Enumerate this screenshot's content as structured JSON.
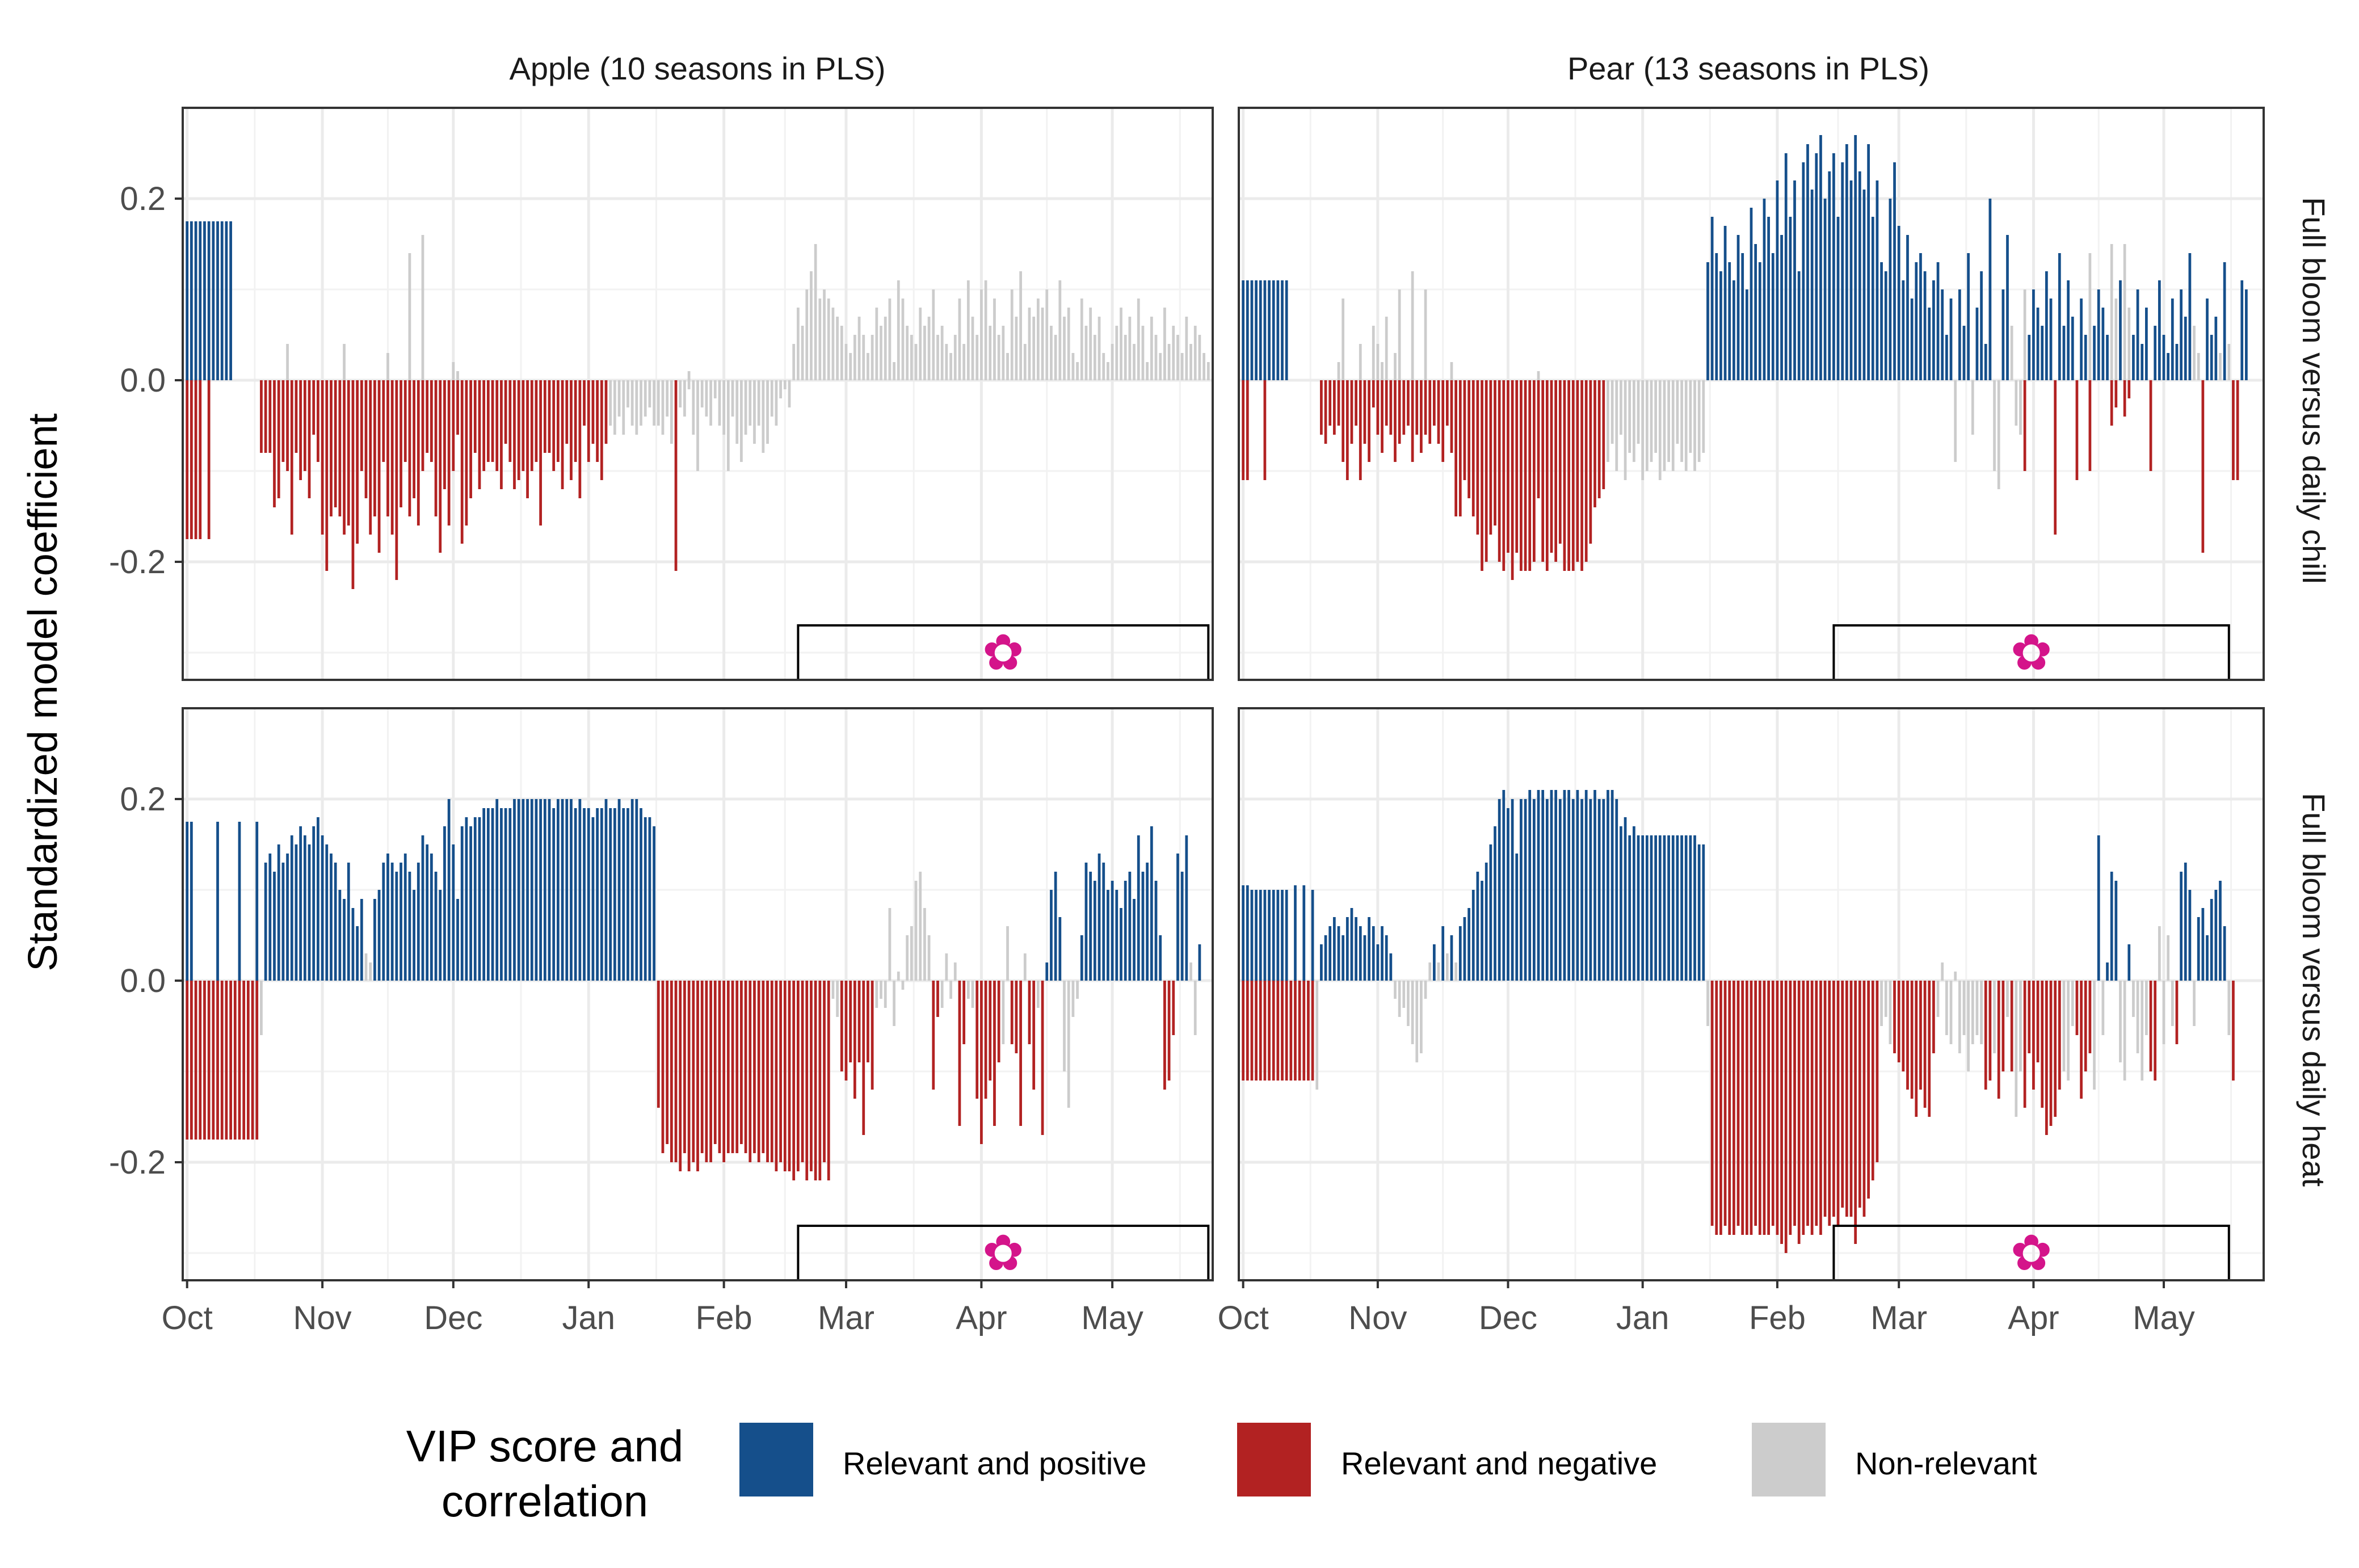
{
  "chart_data": {
    "type": "bar",
    "ylabel": "Standardized model coefficient",
    "ylim": [
      -0.33,
      0.3
    ],
    "yticks": [
      "0.2",
      "0.0",
      "-0.2"
    ],
    "ytick_values": [
      0.2,
      0.0,
      -0.2
    ],
    "xticks": [
      "Oct",
      "Nov",
      "Dec",
      "Jan",
      "Feb",
      "Mar",
      "Apr",
      "May"
    ],
    "xtick_days": [
      0,
      31,
      61,
      92,
      123,
      151,
      182,
      212
    ],
    "xlim": [
      -1,
      235
    ],
    "grid": true,
    "colors": {
      "positive": "#154f8b",
      "negative": "#b22222",
      "nonrelevant": "#cccccc",
      "flower": "#d4148a"
    },
    "legend": {
      "title_line1": "VIP score and",
      "title_line2": "correlation",
      "entries": [
        {
          "key": "positive",
          "label": "Relevant and positive"
        },
        {
          "key": "negative",
          "label": "Relevant and negative"
        },
        {
          "key": "nonrelevant",
          "label": "Non-relevant"
        }
      ],
      "placement": "bottom"
    },
    "columns": [
      {
        "id": "apple",
        "title": "Apple (10 seasons in PLS)",
        "bloom_window": [
          140,
          234
        ]
      },
      {
        "id": "pear",
        "title": "Pear (13 seasons in PLS)",
        "bloom_window": [
          136,
          227
        ]
      }
    ],
    "rows": [
      {
        "id": "chill",
        "title": "Full bloom versus daily chill"
      },
      {
        "id": "heat",
        "title": "Full bloom versus daily heat"
      }
    ],
    "flower_symbol": "✿",
    "panels": {
      "apple_chill": "0-3:0.175P/-0.175N;4-4:0.175P;5-5:0.175P/-0.175N;6-10:0.175P;11-16:0;17-19:-0.08N;20-20:-0.14N;21-21:-0.13N;22-22:-0.09N;23-23:0.04C/-0.1N;24-24:-0.17N;25-25:-0.08N;26-26:-0.11N;27-27:-0.1N;28-28:-0.13N;29-29:-0.06N;30-30:-0.09N;31-31:-0.17N;32-32:-0.21N;33-33:-0.15N;34-34:-0.14N;35-35:-0.15N;36-36:0.04C/-0.17N;37-37:-0.16N;38-38:-0.23N;39-39:-0.18N;40-40:-0.1N;41-41:-0.13N;42-42:-0.17N;43-43:-0.15N;44-44:-0.19N;45-45:-0.09N;46-46:0.03C/-0.15N;47-47:-0.17N;48-48:-0.22N;49-49:-0.14N;50-50:-0.09N;51-51:0.14C/-0.15N;52-52:-0.13N;53-53:-0.16N;54-54:0.16C/-0.1N;55-55:-0.08N;56-56:-0.09N;57-57:-0.15N;58-58:-0.19N;59-59:-0.12N;60-60:-0.16N;61-61:0.02C/-0.1N;62-62:0.01C/-0.06N;63-63:-0.18N;64-64:-0.16N;65-65:-0.13N;66-66:-0.08N;67-67:-0.12N;68-68:-0.1N;69-69:-0.09N;70-70:-0.09N;71-71:-0.1N;72-72:-0.12N;73-73:-0.07N;74-74:-0.09N;75-75:-0.12N;76-76:-0.11N;77-77:-0.1N;78-78:-0.13N;79-79:-0.1N;80-80:-0.09N;81-81:-0.16N;82-82:-0.08N;83-83:-0.08N;84-84:-0.1N;85-85:-0.09N;86-86:-0.12N;87-87:-0.07N;88-88:-0.11N;89-89:-0.09N;90-90:-0.13N;91-91:-0.05N;92-92:-0.09N;93-93:-0.07N;94-94:-0.09N;95-95:-0.11N;96-96:-0.07N;97-97:-0.05C;98-98:-0.06C;99-99:-0.04C;100-100:-0.06C;101-101:-0.03C;102-102:-0.05C;103-103:-0.06C;104-104:-0.05C;105-105:-0.04C;106-106:-0.03C;107-107:-0.05C;108-108:-0.05C;109-109:-0.06C;110-110:-0.04C;111-111:-0.07C;112-112:-0.21N;113-113:-0.03C;114-114:-0.04C;115-115:0.01C/-0.01C;116-116:-0.06C;117-117:-0.1C;118-118:-0.03C;119-119:-0.04C;120-120:-0.05C;121-121:-0.02C;122-122:-0.05C;123-123:-0.06C;124-124:-0.1C;125-125:-0.04C;126-126:-0.07C;127-127:-0.09C;128-128:-0.06C;129-129:-0.05C;130-130:-0.07C;131-131:-0.05C;132-132:-0.08C;133-133:-0.07C;134-134:-0.04C;135-135:-0.05C;136-136:-0.02C;137-137:-0.01C;138-138:-0.03C;139-139:0.04C;140-140:0.08C;141-141:0.06C;142-142:0.1C;143-143:0.12C;144-144:0.15C;145-145:0.09C;146-146:0.1C;147-147:0.09C;148-148:0.08C;149-149:0.07C;150-150:0.06C;151-151:0.04C;152-152:0.03C;153-153:0.05C;154-154:0.07C;155-155:0.05C;156-156:0.03C;157-157:0.05C;158-158:0.08C;159-159:0.06C;160-160:0.07C;161-161:0.09C;162-162:0.02C;163-163:0.11C;164-164:0.09C;165-165:0.06C;166-166:0.05C;167-167:0.04C;168-168:0.08C;169-169:0.06C;170-170:0.07C;171-171:0.1C;172-172:0.05C;173-173:0.06C;174-174:0.04C;175-175:0.03C;176-176:0.05C;177-177:0.09C;178-178:0.04C;179-179:0.11C;180-180:0.07C;181-181:0.05C;182-182:0.1C;183-183:0.11C;184-184:0.06C;185-185:0.09C;186-186:0.05C;187-187:0.06C;188-188:0.03C;189-189:0.1C;190-190:0.07C;191-191:0.12C;192-192:0.04C;193-193:0.08C;194-194:0.07C;195-195:0.09C;196-196:0.08C;197-197:0.1C;198-198:0.06C;199-199:0.05C;200-200:0.11C;201-201:0.07C;202-202:0.08C;203-203:0.03C;204-204:0.02C;205-205:0.09C;206-206:0.06C;207-207:0.08C;208-208:0.05C;209-209:0.07C;210-210:0.03C;211-211:0.02C;212-212:0.04C;213-213:0.06C;214-214:0.08C;215-215:0.05C;216-216:0.07C;217-217:0.04C;218-218:0.09C;219-219:0.06C;220-220:0.02C;221-221:0.07C;222-222:0.05C;223-223:0.03C;224-224:0.08C;225-225:0.04C;226-226:0.06C;227-227:0.05C;228-228:0.03C;229-229:0.07C;230-230:0.04C;231-231:0.06C;232-232:0.05C;233-233:0.03C;234-234:0.02C",
      "apple_heat": "0-1:0.175P/-0.175N;2-6:-0.175N;7-7:0.175P/-0.175N;8-11:-0.175N;12-12:0.175P/-0.175N;13-15:-0.175N;16-16:0.175P/-0.175N;17-17:-0.06C;18-18:0.13P;19-19:0.14P;20-20:0.12P;21-21:0.15P;22-22:0.13P;23-23:0.14P;24-24:0.16P;25-25:0.15P;26-26:0.17P;27-27:0.16P;28-28:0.15P;29-29:0.17P;30-30:0.18P;31-31:0.16P;32-32:0.15P;33-33:0.14P;34-34:0.13P;35-35:0.1P;36-36:0.09P;37-37:0.13P;38-38:0.08P;39-39:0.06P;40-40:0.09P;41-41:0.03C;42-42:0.02C;43-43:0.09P;44-44:0.1P;45-45:0.13P;46-46:0.14P;47-47:0.13P;48-48:0.12P;49-49:0.13P;50-50:0.14P;51-51:0.12P;52-52:0.1P;53-53:0.13P;54-54:0.16P;55-55:0.15P;56-56:0.14P;57-57:0.12P;58-58:0.1P;59-59:0.17P;60-60:0.2P;61-61:0.15P;62-62:0.09P;63-63:0.17P;64-64:0.18P;65-65:0.17P;66-66:0.18P;67-67:0.18P;68-68:0.19P;69-69:0.19P;70-70:0.19P;71-71:0.2P;72-72:0.19P;73-73:0.19P;74-74:0.19P;75-75:0.2P;76-76:0.2P;77-77:0.2P;78-78:0.2P;79-79:0.2P;80-80:0.2P;81-81:0.2P;82-82:0.2P;83-83:0.2P;84-84:0.19P;85-85:0.2P;86-86:0.2P;87-87:0.2P;88-88:0.2P;89-89:0.19P;90-90:0.2P;91-91:0.19P;92-92:0.19P;93-93:0.18P;94-94:0.19P;95-95:0.19P;96-96:0.2P;97-97:0.19P;98-98:0.19P;99-99:0.2P;100-100:0.19P;101-101:0.19P;102-102:0.2P;103-103:0.2P;104-104:0.19P;105-105:0.18P;106-106:0.18P;107-107:0.17P;108-108:-0.14N;109-109:-0.19N;110-110:-0.18N;111-111:-0.2N;112-112:-0.2N;113-113:-0.21N;114-114:-0.19N;115-115:-0.21N;116-116:-0.2N;117-117:-0.21N;118-118:-0.19N;119-119:-0.2N;120-120:-0.2N;121-121:-0.18N;122-122:-0.19N;123-123:-0.2N;124-124:-0.19N;125-125:-0.19N;126-126:-0.19N;127-127:-0.18N;128-128:-0.19N;129-129:-0.2N;130-130:-0.19N;131-131:-0.2N;132-132:-0.19N;133-133:-0.2N;134-134:-0.2N;135-135:-0.21N;136-136:-0.2N;137-137:-0.21N;138-138:-0.21N;139-139:-0.22N;140-140:-0.21N;141-141:-0.2N;142-142:-0.22N;143-143:-0.21N;144-144:-0.22N;145-145:-0.22N;146-146:-0.2N;147-147:-0.22N;148-148:-0.02C;149-149:-0.04C;150-150:-0.1N;151-151:-0.11N;152-152:-0.09N;153-153:-0.13N;154-154:-0.09N;155-155:-0.17N;156-156:-0.09N;157-157:-0.12N;158-158:-0.03C;159-159:-0.02C;160-160:-0.03C;161-161:0.08C;162-162:-0.05C;163-163:0.01C;164-164:-0.01C;165-165:0.05C;166-166:0.06C;167-167:0.11C;168-168:0.12C;169-169:0.08C;170-170:0.05C;171-171:-0.12N;172-172:-0.04N;173-173:-0.03C;174-174:0.03C;175-175:-0.02C;176-176:0.02C;177-177:-0.16N;178-178:-0.07N;179-179:-0.02C;180-180:-0.03C;181-181:-0.13N;182-182:-0.18N;183-183:-0.13N;184-184:-0.11N;185-185:-0.16N;186-186:-0.09N;187-187:-0.07C;188-188:0.06C;189-189:-0.07N;190-190:-0.08N;191-191:-0.16N;192-192:0.03C;193-193:-0.07N;194-194:-0.12N;195-195:-0.03C;196-196:-0.17N;197-197:0.02P;198-198:0.1P;199-199:0.12P;200-200:0.07P;201-201:-0.1C;202-202:-0.14C;203-203:-0.04C;204-204:-0.02C;205-205:0.05P;206-206:0.13P;207-207:0.12P;208-208:0.11P;209-209:0.14P;210-210:0.13P;211-211:0.1P;212-212:0.11P;213-213:0.1P;214-214:0.08P;215-215:0.11P;216-216:0.12P;217-217:0.09P;218-218:0.16P;219-219:0.12P;220-220:0.13P;221-221:0.17P;222-222:0.11P;223-223:0.05P;224-224:-0.12N;225-225:-0.11N;226-226:-0.06N;227-227:0.14P;228-228:0.12P;229-229:0.16P;230-230:0.02C;231-231:-0.06C;232-232:0.04P",
      "pear_chill": "0-1:0.11P/-0.11N;2-4:0.11P;5-5:0.11P/-0.11N;6-10:0.11P;11-17:0;18-18:-0.06N;19-19:-0.07N;20-20:-0.05N;21-21:-0.06N;22-22:0.02C/-0.05N;23-23:0.09C/-0.09N;24-24:-0.11N;25-25:-0.07N;26-26:-0.05N;27-27:0.04C/-0.11N;28-28:-0.07N;29-29:-0.09N;30-30:0.06C/-0.03N;31-31:0.04C/-0.06N;32-32:0.02C/-0.08N;33-33:0.07C/-0.05N;34-34:-0.06N;35-35:0.03C/-0.09N;36-36:0.1C/-0.07N;37-37:-0.06N;38-38:-0.05N;39-39:0.12C/-0.09N;40-40:-0.06N;41-41:-0.08N;42-42:0.1C/-0.06N;43-43:-0.07N;44-44:-0.05N;45-45:-0.07N;46-46:-0.09N;47-47:-0.05N;48-48:0.02C/-0.08N;49-49:-0.15N;50-50:-0.15N;51-51:-0.11N;52-52:-0.13N;53-53:-0.15N;54-54:-0.17N;55-55:-0.21N;56-56:-0.2N;57-57:-0.17N;58-58:-0.16N;59-59:-0.2N;60-60:-0.21N;61-61:-0.19N;62-62:-0.22N;63-63:-0.19N;64-64:-0.21N;65-65:-0.21N;66-66:-0.21N;67-67:-0.2N;68-68:0.01C/-0.13N;69-69:-0.2N;70-70:-0.21N;71-71:-0.19N;72-72:-0.2N;73-73:-0.18N;74-74:-0.21N;75-75:-0.21N;76-76:-0.21N;77-77:-0.2N;78-78:-0.21N;79-79:-0.2N;80-80:-0.18N;81-81:-0.14N;82-82:-0.13N;83-83:-0.12N;84-84:-0.09C;85-85:-0.07C;86-86:-0.1C;87-87:-0.06C;88-88:-0.11C;89-89:-0.08C;90-90:-0.09C;91-91:-0.07C;92-92:-0.11C;93-93:-0.1C;94-94:-0.09C;95-95:-0.08C;96-96:-0.11C;97-97:-0.1C;98-98:-0.09C;99-99:-0.1C;100-100:-0.07C;101-101:-0.09C;102-102:-0.1C;103-103:-0.08C;104-104:-0.1C;105-105:-0.09C;106-106:-0.08C;107-107:0.13P;108-108:0.18P;109-109:0.14P;110-110:0.12P;111-111:0.17P;112-112:0.13P;113-113:0.11P;114-114:0.16P;115-115:0.14P;116-116:0.1P;117-117:0.19P;118-118:0.15P;119-119:0.13P;120-120:0.2P;121-121:0.18P;122-122:0.14P;123-123:0.22P;124-124:0.16P;125-125:0.25P;126-126:0.18P;127-127:0.22P;128-128:0.12P;129-129:0.24P;130-130:0.26P;131-131:0.21P;132-132:0.25P;133-133:0.27P;134-134:0.2P;135-135:0.23P;136-136:0.25P;137-137:0.18P;138-138:0.24P;139-139:0.26P;140-140:0.22P;141-141:0.27P;142-142:0.23P;143-143:0.21P;144-144:0.26P;145-145:0.18P;146-146:0.22P;147-147:0.13P;148-148:0.12P;149-149:0.2P;150-150:0.24P;151-151:0.17P;152-152:0.11P;153-153:0.16P;154-154:0.09P;155-155:0.13P;156-156:0.14P;157-157:0.12P;158-158:0.08P;159-159:0.11P;160-160:0.13P;161-161:0.1P;162-162:0.05P;163-163:0.09P;164-164:-0.09C;165-165:0.1P;166-166:0.06P;167-167:0.14P;168-168:-0.06C;169-169:0.08P;170-170:0.12P;171-171:0.04P;172-172:0.2P;173-173:-0.1C;174-174:-0.12C;175-175:0.1P;176-176:0.16P;177-177:0.06C;178-178:-0.05C;179-179:-0.06C;180-180:0.1C/-0.1N;181-181:0.05P;182-182:0.1P;183-183:0.08P;184-184:0.06P;185-185:0.12P;186-186:0.09P;187-187:-0.17N;188-188:0.14P;189-189:0.06P;190-190:0.11P;191-191:0.07P;192-192:-0.11N;193-193:0.09P;194-194:0.05P;195-195:0.14C/-0.1N;196-196:0.06P;197-197:0.1P;198-198:0.08P;199-199:0.05P;200-200:0.15C/-0.05N;201-201:0.09C/-0.03N;202-202:0.11P;203-203:0.15C/-0.04N;204-204:0.08C/-0.02N;205-205:0.05P;206-206:0.1P;207-207:0.04P;208-208:0.08P;209-209:-0.1N;210-210:0.06P;211-211:0.11P;212-212:0.05P;213-213:0.03P;214-214:0.09P;215-215:0.04P;216-216:0.1P;217-217:0.07P;218-218:0.14P;219-219:0.06C;220-220:0.03C;221-221:-0.19N;222-222:0.09P;223-223:0.05P;224-224:0.07P;225-225:0.03C;226-226:0.13P;227-227:0.04C;228-228:-0.11N;229-229:-0.11N;230-230:0.11P;231-231:0.1P",
      "pear_heat": "0-1:0.105P/-0.11N;2-10:0.1P/-0.11N;11-11:-0.11N;12-12:0.105P/-0.11N;13-13:-0.11N;14-14:0.105P/-0.11N;15-15:-0.11N;16-16:0.1P/-0.11N;17-17:-0.12C;18-18:0.04P;19-19:0.05P;20-20:0.06P;21-21:0.07P;22-22:0.06P;23-23:0.05P;24-24:0.07P;25-25:0.08P;26-26:0.07P;27-27:0.06P;28-28:0.05P;29-29:0.07P;30-30:0.06P;31-31:0.04P;32-32:0.06P;33-33:0.05P;34-34:0.03P;35-35:-0.02C;36-36:-0.04C;37-37:-0.03C;38-38:-0.05C;39-39:-0.07C;40-40:-0.09C;41-41:-0.08C;42-42:-0.02C;43-43:0.02C;44-44:0.04P;45-45:0.02C;46-46:0.06P;47-47:0.03C;48-48:0.05P;49-49:0.02C;50-50:0.06P;51-51:0.07P;52-52:0.08P;53-53:0.1P;54-54:0.12P;55-55:0.11P;56-56:0.13P;57-57:0.15P;58-58:0.17P;59-59:0.2P;60-60:0.21P;61-61:0.19P;62-62:0.2P;63-63:0.14P;64-64:0.2P;65-65:0.2P;66-66:0.21P;67-67:0.2P;68-68:0.21P;69-69:0.21P;70-70:0.2P;71-71:0.21P;72-72:0.21P;73-73:0.2P;74-74:0.21P;75-75:0.21P;76-76:0.2P;77-77:0.21P;78-78:0.2P;79-79:0.21P;80-80:0.2P;81-81:0.21P;82-82:0.2P;83-83:0.2P;84-84:0.21P;85-85:0.21P;86-86:0.2P;87-87:0.17P;88-88:0.18P;89-89:0.16P;90-90:0.17P;91-91:0.16P;92-92:0.16P;93-93:0.16P;94-94:0.16P;95-95:0.16P;96-96:0.16P;97-97:0.16P;98-98:0.16P;99-99:0.16P;100-100:0.16P;101-101:0.16P;102-102:0.16P;103-103:0.16P;104-104:0.16P;105-105:0.15P;106-106:0.15P;107-107:-0.05C;108-108:-0.27N;109-109:-0.28N;110-110:-0.28N;111-111:-0.27N;112-112:-0.28N;113-113:-0.28N;114-114:-0.27N;115-115:-0.28N;116-116:-0.28N;117-117:-0.28N;118-118:-0.27N;119-119:-0.28N;120-120:-0.28N;121-121:-0.28N;122-122:-0.27N;123-123:-0.28N;124-124:-0.29N;125-125:-0.3N;126-126:-0.28N;127-127:-0.27N;128-128:-0.29N;129-129:-0.28N;130-130:-0.27N;131-131:-0.28N;132-132:-0.27N;133-133:-0.28N;134-134:-0.26N;135-135:-0.27N;136-136:-0.26N;137-137:-0.27N;138-138:-0.25N;139-139:-0.26N;140-140:-0.26N;141-141:-0.29N;142-142:-0.25N;143-143:-0.26N;144-144:-0.24N;145-145:-0.22N;146-146:-0.2N;147-147:-0.05C;148-148:-0.04C;149-149:-0.07C;150-150:-0.08N;151-151:-0.09N;152-152:-0.1N;153-153:-0.12N;154-154:-0.13N;155-155:-0.15N;156-156:-0.12N;157-157:-0.14N;158-158:-0.15N;159-159:-0.08N;160-160:-0.04C;161-161:0.02C;162-162:-0.06C;163-163:-0.07C;164-164:0.01C;165-165:-0.08C;166-166:-0.06C;167-167:-0.1C;168-168:-0.07C;169-169:-0.06C;170-170:-0.07C;171-171:-0.12N;172-172:-0.11N;173-173:-0.08C;174-174:-0.13N;175-175:-0.1N;176-176:-0.04C;177-177:-0.1N;178-178:-0.15C;179-179:-0.1C;180-180:-0.14N;181-181:-0.08N;182-182:-0.12N;183-183:-0.09N;184-184:-0.14N;185-185:-0.17N;186-186:-0.16N;187-187:-0.15N;188-188:-0.12N;189-189:-0.1C;190-190:-0.11C;191-191:-0.05C;192-192:-0.06N;193-193:-0.13N;194-194:-0.1N;195-195:-0.08N;196-196:-0.12C;197-197:0.16P;198-198:-0.06C;199-199:0.02P;200-200:0.12P;201-201:0.11P;202-202:-0.09C;203-203:-0.11C;204-204:0.04P;205-205:-0.04C;206-206:-0.08C;207-207:-0.11C;208-208:-0.06C;209-209:-0.1N;210-210:-0.11N;211-211:0.06C;212-212:-0.07C;213-213:0.05C;214-214:-0.05C;215-215:-0.07N;216-216:0.12P;217-217:0.13P;218-218:0.1P;219-219:-0.05C;220-220:0.07P;221-221:0.08P;222-222:0.05P;223-223:0.09P;224-224:0.1P;225-225:0.11P;226-226:0.06P;227-227:-0.06C;228-228:-0.11N"
    }
  }
}
